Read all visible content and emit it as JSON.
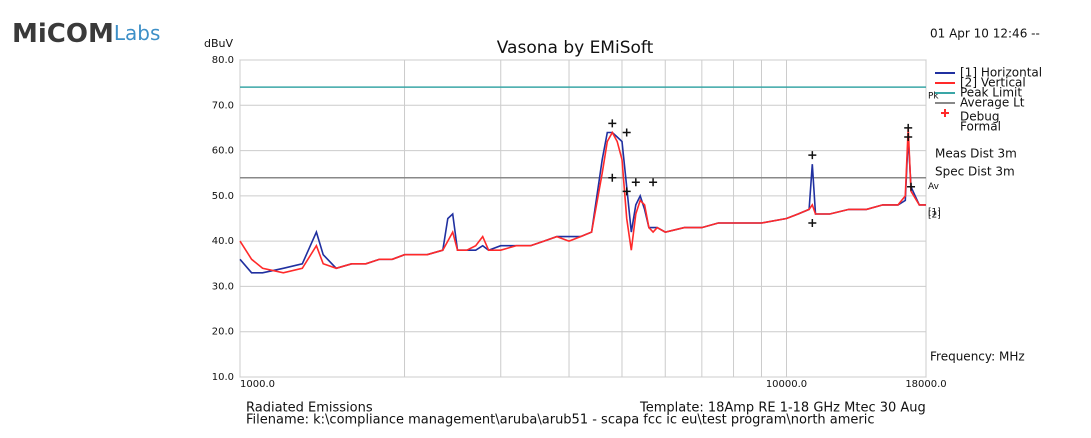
{
  "logo": {
    "bold": "MiCOM",
    "light": "Labs"
  },
  "chart_data": {
    "type": "line",
    "title": "Vasona by EMiSoft",
    "y_label": "dBuV",
    "x_label": "Frequency: MHz",
    "timestamp": "01 Apr 10 12:46 --",
    "x_log": true,
    "grid": true,
    "xlim": [
      1000,
      18000
    ],
    "ylim": [
      10,
      80
    ],
    "yticks": [
      {
        "value": 80,
        "label": "80.0"
      },
      {
        "value": 70,
        "label": "70.0"
      },
      {
        "value": 60,
        "label": "60.0"
      },
      {
        "value": 50,
        "label": "50.0"
      },
      {
        "value": 40,
        "label": "40.0"
      },
      {
        "value": 30,
        "label": "30.0"
      },
      {
        "value": 20,
        "label": "20.0"
      },
      {
        "value": 10,
        "label": "10.0"
      }
    ],
    "xticks": [
      {
        "value": 1000,
        "label": "1000.0"
      },
      {
        "value": 2000,
        "label": null
      },
      {
        "value": 3000,
        "label": null
      },
      {
        "value": 4000,
        "label": null
      },
      {
        "value": 5000,
        "label": null
      },
      {
        "value": 6000,
        "label": null
      },
      {
        "value": 7000,
        "label": null
      },
      {
        "value": 8000,
        "label": null
      },
      {
        "value": 9000,
        "label": null
      },
      {
        "value": 10000,
        "label": "10000.0"
      },
      {
        "value": 18000,
        "label": "18000.0"
      }
    ],
    "x": [
      1000,
      1050,
      1100,
      1200,
      1300,
      1380,
      1420,
      1500,
      1600,
      1700,
      1800,
      1900,
      2000,
      2100,
      2200,
      2350,
      2400,
      2450,
      2500,
      2600,
      2700,
      2780,
      2850,
      3000,
      3200,
      3400,
      3600,
      3800,
      4000,
      4200,
      4400,
      4600,
      4700,
      4800,
      4900,
      5000,
      5100,
      5200,
      5300,
      5400,
      5500,
      5600,
      5700,
      5800,
      6000,
      6500,
      7000,
      7500,
      8000,
      9000,
      10000,
      10500,
      11000,
      11150,
      11300,
      12000,
      13000,
      14000,
      15000,
      16000,
      16500,
      16700,
      16900,
      17500,
      18000
    ],
    "series": [
      {
        "name": "[1] Horizontal",
        "color": "#2030a0",
        "values": [
          36,
          33,
          33,
          34,
          35,
          42,
          37,
          34,
          35,
          35,
          36,
          36,
          37,
          37,
          37,
          38,
          45,
          46,
          38,
          38,
          38,
          39,
          38,
          39,
          39,
          39,
          40,
          41,
          41,
          41,
          42,
          58,
          64,
          64,
          63,
          62,
          52,
          42,
          48,
          50,
          47,
          43,
          43,
          43,
          42,
          43,
          43,
          44,
          44,
          44,
          45,
          46,
          47,
          57,
          46,
          46,
          47,
          47,
          48,
          48,
          49,
          63,
          52,
          48,
          48
        ]
      },
      {
        "name": "[2] Vertical",
        "color": "#ff2a2a",
        "values": [
          40,
          36,
          34,
          33,
          34,
          39,
          35,
          34,
          35,
          35,
          36,
          36,
          37,
          37,
          37,
          38,
          40,
          42,
          38,
          38,
          39,
          41,
          38,
          38,
          39,
          39,
          40,
          41,
          40,
          41,
          42,
          55,
          62,
          64,
          62,
          58,
          45,
          38,
          46,
          49,
          48,
          43,
          42,
          43,
          42,
          43,
          43,
          44,
          44,
          44,
          45,
          46,
          47,
          48,
          46,
          46,
          47,
          47,
          48,
          48,
          50,
          65,
          51,
          48,
          48
        ]
      }
    ],
    "limits": [
      {
        "name": "Peak Limit",
        "color": "#3aa6a6",
        "value": 74,
        "label": "Pk"
      },
      {
        "name": "Average Lt",
        "color": "#888888",
        "value": 54,
        "label": "Av"
      }
    ],
    "peaks": {
      "x": [
        4800,
        5100,
        4800,
        5100,
        5300,
        5700,
        11150,
        11150,
        16700,
        16700,
        16900
      ],
      "values": [
        66,
        64,
        54,
        51,
        53,
        53,
        59,
        44,
        63,
        65,
        52
      ]
    },
    "legend_extra": [
      {
        "name": "Debug",
        "color": "#ff2a2a"
      },
      {
        "name": "Formal"
      }
    ],
    "meas_dist": "Meas Dist 3m",
    "spec_dist": "Spec Dist 3m",
    "end_labels": [
      "[1]",
      "[2]"
    ],
    "footer": {
      "left": "Radiated Emissions",
      "template": "Template: 18Amp RE 1-18 GHz Mtec 30 Aug",
      "filename": "Filename: k:\\compliance management\\aruba\\arub51 - scapa fcc ic eu\\test program\\north americ"
    }
  }
}
